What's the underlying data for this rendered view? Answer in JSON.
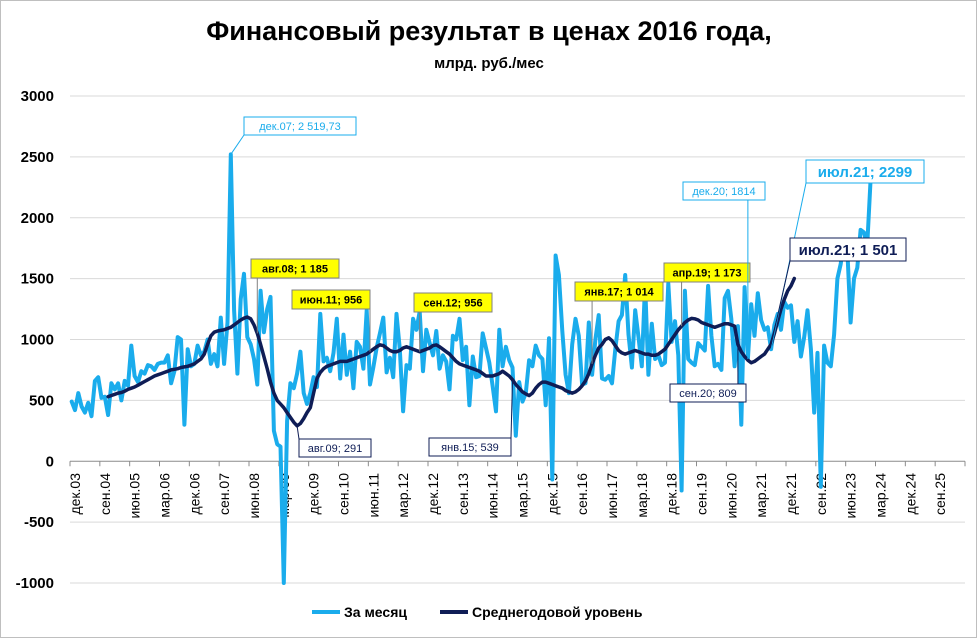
{
  "chart_data": {
    "type": "line",
    "title": "Финансовый результат в ценах 2016 года,",
    "subtitle": "млрд. руб./мес",
    "ylim": [
      -1000,
      3000
    ],
    "yticks": [
      3000,
      2500,
      2000,
      1500,
      1000,
      500,
      0,
      -500,
      -1000
    ],
    "x_start": "дек.03",
    "x_tick_labels": [
      "дек.03",
      "сен.04",
      "июн.05",
      "мар.06",
      "дек.06",
      "сен.07",
      "июн.08",
      "мар.09",
      "дек.09",
      "сен.10",
      "июн.11",
      "мар.12",
      "дек.12",
      "сен.13",
      "июн.14",
      "мар.15",
      "дек.15",
      "сен.16",
      "июн.17",
      "мар.18",
      "дек.18",
      "сен.19",
      "июн.20",
      "мар.21",
      "дек.21",
      "сен.22",
      "июн.23",
      "мар.24",
      "дек.24",
      "сен.25"
    ],
    "grid": true,
    "legend_position": "bottom",
    "series": [
      {
        "name": "За месяц",
        "color": "#1aacec",
        "start_index": 0,
        "values": [
          490,
          420,
          560,
          450,
          400,
          480,
          370,
          660,
          690,
          520,
          530,
          380,
          640,
          590,
          640,
          500,
          660,
          620,
          950,
          700,
          650,
          740,
          720,
          790,
          780,
          750,
          800,
          810,
          810,
          870,
          640,
          740,
          1020,
          1000,
          300,
          920,
          780,
          800,
          950,
          870,
          900,
          1000,
          800,
          880,
          780,
          1180,
          800,
          1140,
          2520,
          1240,
          720,
          1330,
          1540,
          1020,
          960,
          840,
          630,
          1400,
          1060,
          1250,
          1350,
          250,
          140,
          120,
          -1000,
          330,
          640,
          600,
          720,
          900,
          560,
          470,
          560,
          690,
          610,
          1210,
          820,
          850,
          740,
          890,
          1170,
          680,
          1040,
          710,
          900,
          600,
          980,
          940,
          760,
          1240,
          630,
          770,
          930,
          1050,
          1180,
          730,
          850,
          690,
          1210,
          920,
          410,
          790,
          760,
          1170,
          1080,
          1230,
          740,
          1080,
          970,
          870,
          1070,
          760,
          870,
          820,
          590,
          1030,
          1000,
          1170,
          830,
          940,
          460,
          860,
          690,
          700,
          1050,
          930,
          810,
          620,
          410,
          1080,
          780,
          940,
          830,
          770,
          210,
          650,
          490,
          560,
          830,
          780,
          950,
          870,
          840,
          460,
          1010,
          -150,
          1690,
          1530,
          1070,
          710,
          560,
          960,
          1170,
          1030,
          630,
          640,
          1140,
          710,
          1000,
          1200,
          680,
          670,
          700,
          640,
          920,
          1150,
          1200,
          1530,
          1040,
          770,
          1240,
          1020,
          780,
          1460,
          710,
          1130,
          840,
          870,
          790,
          810,
          1460,
          980,
          1150,
          870,
          -240,
          1400,
          840,
          810,
          790,
          970,
          940,
          910,
          1440,
          1030,
          780,
          800,
          750,
          1340,
          1400,
          1170,
          780,
          1110,
          300,
          1430,
          840,
          1290,
          1030,
          1380,
          1160,
          1080,
          1100,
          920,
          1120,
          1210,
          1080,
          1310,
          1260,
          1280,
          980,
          1150,
          860,
          1020,
          1240,
          920,
          400,
          890,
          -210,
          950,
          810,
          780,
          1040,
          1500,
          1620,
          1814,
          1740,
          1140,
          1500,
          1590,
          1900,
          1880,
          1770,
          2299
        ]
      },
      {
        "name": "Среднегодовой уровень",
        "color": "#0f1d56",
        "start_index": 11,
        "values": [
          530,
          540,
          550,
          560,
          565,
          575,
          590,
          600,
          610,
          625,
          640,
          655,
          670,
          685,
          700,
          710,
          720,
          730,
          740,
          750,
          755,
          760,
          770,
          775,
          780,
          790,
          800,
          820,
          840,
          880,
          960,
          1030,
          1060,
          1070,
          1075,
          1080,
          1090,
          1100,
          1120,
          1140,
          1160,
          1175,
          1185,
          1170,
          1120,
          1050,
          960,
          860,
          760,
          650,
          560,
          500,
          470,
          440,
          400,
          360,
          320,
          291,
          310,
          350,
          400,
          440,
          560,
          680,
          730,
          760,
          780,
          790,
          800,
          810,
          820,
          820,
          820,
          830,
          840,
          850,
          860,
          870,
          880,
          900,
          920,
          940,
          956,
          950,
          930,
          910,
          900,
          900,
          910,
          930,
          940,
          930,
          920,
          910,
          900,
          910,
          920,
          930,
          950,
          956,
          940,
          920,
          900,
          880,
          850,
          820,
          800,
          790,
          780,
          770,
          760,
          750,
          740,
          720,
          700,
          700,
          700,
          710,
          720,
          740,
          720,
          700,
          670,
          630,
          600,
          570,
          553,
          539,
          560,
          600,
          630,
          650,
          650,
          640,
          630,
          620,
          610,
          600,
          580,
          570,
          560,
          570,
          590,
          620,
          660,
          720,
          800,
          870,
          930,
          960,
          1000,
          1014,
          990,
          950,
          910,
          890,
          880,
          890,
          900,
          910,
          900,
          890,
          880,
          880,
          870,
          870,
          880,
          900,
          920,
          960,
          1000,
          1040,
          1080,
          1110,
          1140,
          1160,
          1173,
          1170,
          1160,
          1140,
          1130,
          1120,
          1110,
          1100,
          1110,
          1120,
          1130,
          1130,
          1120,
          1110,
          960,
          900,
          860,
          830,
          809,
          820,
          840,
          860,
          880,
          920,
          960,
          1050,
          1150,
          1250,
          1330,
          1400,
          1440,
          1501
        ]
      }
    ],
    "annotations": [
      {
        "label": "дек.07;  2 519,73",
        "series": "За месяц"
      },
      {
        "label": "авг.08; 1 185",
        "series": "Среднегодовой уровень"
      },
      {
        "label": "авг.09; 291",
        "series": "Среднегодовой уровень"
      },
      {
        "label": "июн.11; 956",
        "series": "Среднегодовой уровень"
      },
      {
        "label": "сен.12; 956",
        "series": "Среднегодовой уровень"
      },
      {
        "label": "янв.15; 539",
        "series": "Среднегодовой уровень"
      },
      {
        "label": "янв.17; 1 014",
        "series": "Среднегодовой уровень"
      },
      {
        "label": "апр.19; 1 173",
        "series": "Среднегодовой уровень"
      },
      {
        "label": "сен.20; 809",
        "series": "Среднегодовой уровень"
      },
      {
        "label": "дек.20; 1814",
        "series": "За месяц"
      },
      {
        "label": "июл.21; 2299",
        "series": "За месяц"
      },
      {
        "label": "июл.21; 1 501",
        "series": "Среднегодовой уровень"
      }
    ]
  }
}
